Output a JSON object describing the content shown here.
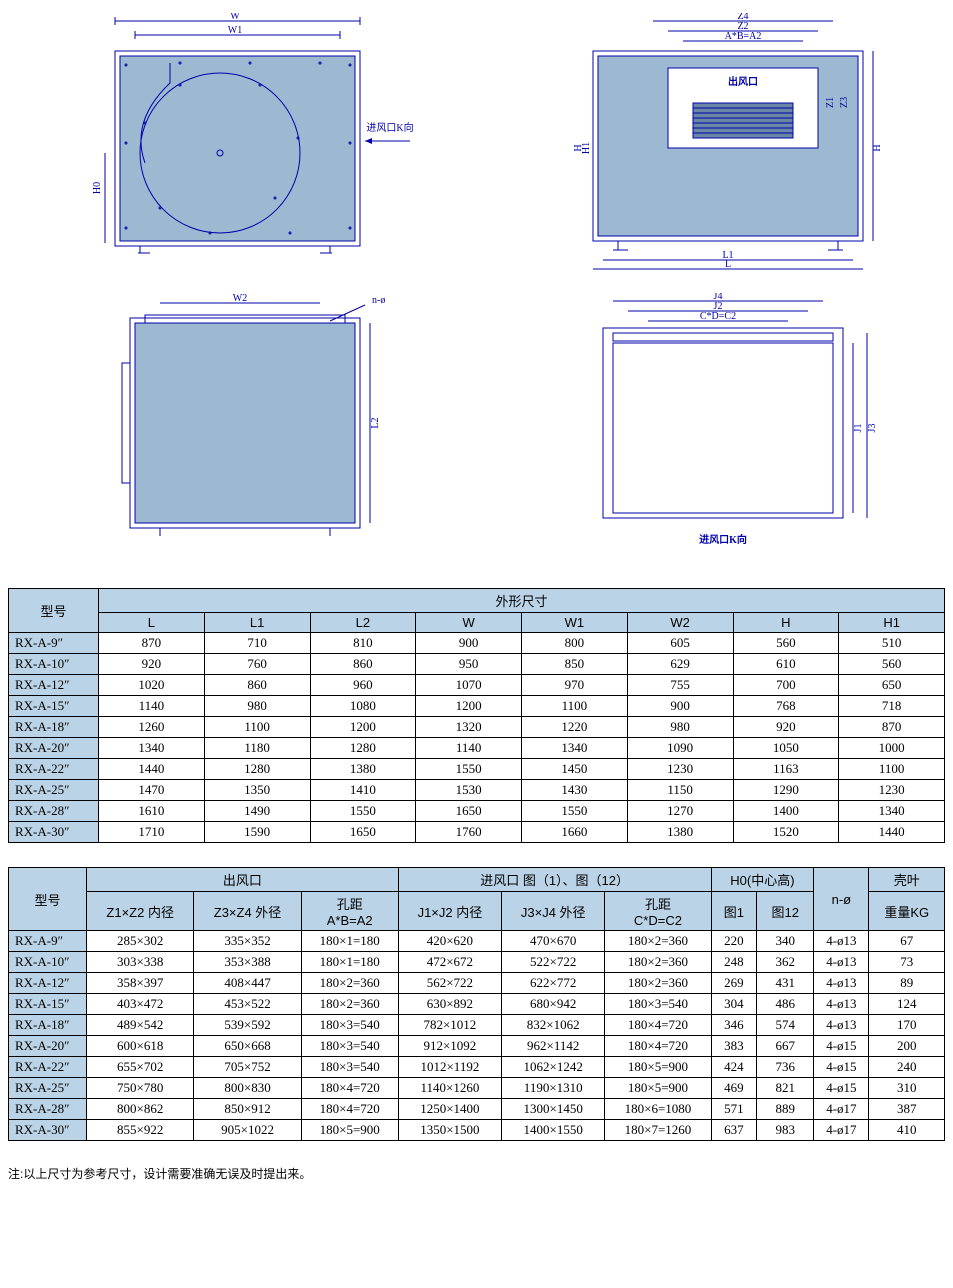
{
  "colors": {
    "line": "#0000aa",
    "fill": "#9db8d1",
    "header_bg": "#bad3e6",
    "border": "#000000",
    "bg": "#ffffff"
  },
  "diagram_labels": {
    "W": "W",
    "W1": "W1",
    "W2": "W2",
    "H0": "H0",
    "inlet_k": "进风口K向",
    "outlet": "出风口",
    "Z4": "Z4",
    "Z2": "Z2",
    "AB_A2": "A*B=A2",
    "Z3": "Z3",
    "Z1": "Z1",
    "H": "H",
    "H1": "H1",
    "L1": "L1",
    "L": "L",
    "L2": "L2",
    "J4": "J4",
    "J2": "J2",
    "CD_C2": "C*D=C2",
    "J1": "J1",
    "J3": "J3",
    "n_phi": "n-ø",
    "inlet_k2": "进风口K向"
  },
  "table1": {
    "header_model": "型号",
    "header_group": "外形尺寸",
    "columns": [
      "L",
      "L1",
      "L2",
      "W",
      "W1",
      "W2",
      "H",
      "H1"
    ],
    "rows": [
      {
        "model": "RX-A-9″",
        "v": [
          "870",
          "710",
          "810",
          "900",
          "800",
          "605",
          "560",
          "510"
        ]
      },
      {
        "model": "RX-A-10″",
        "v": [
          "920",
          "760",
          "860",
          "950",
          "850",
          "629",
          "610",
          "560"
        ]
      },
      {
        "model": "RX-A-12″",
        "v": [
          "1020",
          "860",
          "960",
          "1070",
          "970",
          "755",
          "700",
          "650"
        ]
      },
      {
        "model": "RX-A-15″",
        "v": [
          "1140",
          "980",
          "1080",
          "1200",
          "1100",
          "900",
          "768",
          "718"
        ]
      },
      {
        "model": "RX-A-18″",
        "v": [
          "1260",
          "1100",
          "1200",
          "1320",
          "1220",
          "980",
          "920",
          "870"
        ]
      },
      {
        "model": "RX-A-20″",
        "v": [
          "1340",
          "1180",
          "1280",
          "1140",
          "1340",
          "1090",
          "1050",
          "1000"
        ]
      },
      {
        "model": "RX-A-22″",
        "v": [
          "1440",
          "1280",
          "1380",
          "1550",
          "1450",
          "1230",
          "1163",
          "1100"
        ]
      },
      {
        "model": "RX-A-25″",
        "v": [
          "1470",
          "1350",
          "1410",
          "1530",
          "1430",
          "1150",
          "1290",
          "1230"
        ]
      },
      {
        "model": "RX-A-28″",
        "v": [
          "1610",
          "1490",
          "1550",
          "1650",
          "1550",
          "1270",
          "1400",
          "1340"
        ]
      },
      {
        "model": "RX-A-30″",
        "v": [
          "1710",
          "1590",
          "1650",
          "1760",
          "1660",
          "1380",
          "1520",
          "1440"
        ]
      }
    ]
  },
  "table2": {
    "header_model": "型号",
    "group_out": "出风口",
    "group_in": "进风口 图（1）、图（12）",
    "group_h0": "H0(中心高)",
    "col_nphi": "n-ø",
    "group_weight": "壳叶",
    "sub_out": [
      "Z1×Z2 内径",
      "Z3×Z4 外径",
      "孔距\nA*B=A2"
    ],
    "sub_in": [
      "J1×J2 内径",
      "J3×J4 外径",
      "孔距\nC*D=C2"
    ],
    "sub_h0": [
      "图1",
      "图12"
    ],
    "sub_weight": "重量KG",
    "rows": [
      {
        "model": "RX-A-9″",
        "v": [
          "285×302",
          "335×352",
          "180×1=180",
          "420×620",
          "470×670",
          "180×2=360",
          "220",
          "340",
          "4-ø13",
          "67"
        ]
      },
      {
        "model": "RX-A-10″",
        "v": [
          "303×338",
          "353×388",
          "180×1=180",
          "472×672",
          "522×722",
          "180×2=360",
          "248",
          "362",
          "4-ø13",
          "73"
        ]
      },
      {
        "model": "RX-A-12″",
        "v": [
          "358×397",
          "408×447",
          "180×2=360",
          "562×722",
          "622×772",
          "180×2=360",
          "269",
          "431",
          "4-ø13",
          "89"
        ]
      },
      {
        "model": "RX-A-15″",
        "v": [
          "403×472",
          "453×522",
          "180×2=360",
          "630×892",
          "680×942",
          "180×3=540",
          "304",
          "486",
          "4-ø13",
          "124"
        ]
      },
      {
        "model": "RX-A-18″",
        "v": [
          "489×542",
          "539×592",
          "180×3=540",
          "782×1012",
          "832×1062",
          "180×4=720",
          "346",
          "574",
          "4-ø13",
          "170"
        ]
      },
      {
        "model": "RX-A-20″",
        "v": [
          "600×618",
          "650×668",
          "180×3=540",
          "912×1092",
          "962×1142",
          "180×4=720",
          "383",
          "667",
          "4-ø15",
          "200"
        ]
      },
      {
        "model": "RX-A-22″",
        "v": [
          "655×702",
          "705×752",
          "180×3=540",
          "1012×1192",
          "1062×1242",
          "180×5=900",
          "424",
          "736",
          "4-ø15",
          "240"
        ]
      },
      {
        "model": "RX-A-25″",
        "v": [
          "750×780",
          "800×830",
          "180×4=720",
          "1140×1260",
          "1190×1310",
          "180×5=900",
          "469",
          "821",
          "4-ø15",
          "310"
        ]
      },
      {
        "model": "RX-A-28″",
        "v": [
          "800×862",
          "850×912",
          "180×4=720",
          "1250×1400",
          "1300×1450",
          "180×6=1080",
          "571",
          "889",
          "4-ø17",
          "387"
        ]
      },
      {
        "model": "RX-A-30″",
        "v": [
          "855×922",
          "905×1022",
          "180×5=900",
          "1350×1500",
          "1400×1550",
          "180×7=1260",
          "637",
          "983",
          "4-ø17",
          "410"
        ]
      }
    ]
  },
  "footnote": "注:以上尺寸为参考尺寸，设计需要准确无误及时提出来。"
}
